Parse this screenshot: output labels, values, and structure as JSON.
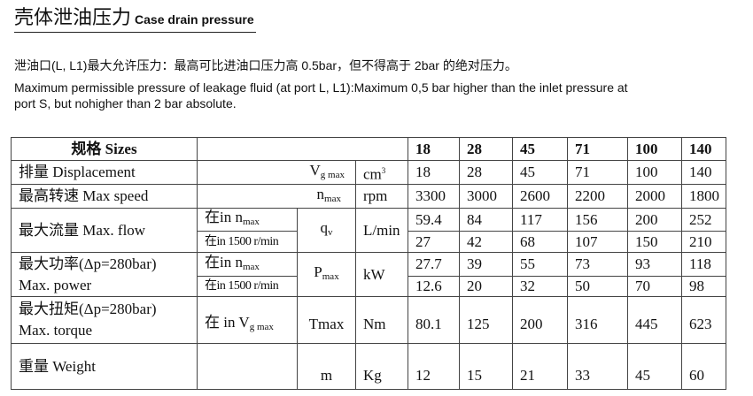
{
  "title": {
    "cn": "壳体泄油压力",
    "en": "Case drain pressure"
  },
  "para_cn": "泄油口(L, L1)最大允许压力：最高可比进油口压力高 0.5bar，但不得高于 2bar  的绝对压力。",
  "para_en1": "Maximum permissible pressure of leakage fluid (at port L, L1):Maximum 0,5 bar higher than the inlet pressure at",
  "para_en2": "port S, but nohigher than 2 bar absolute.",
  "table": {
    "header": "规格  Sizes",
    "sizes": [
      "18",
      "28",
      "45",
      "71",
      "100",
      "140"
    ],
    "rows": {
      "disp": {
        "label": "排量  Displacement",
        "sym": "V",
        "sym_sub": "g max",
        "unit": "cm",
        "unit_sup": "3",
        "values": [
          "18",
          "28",
          "45",
          "71",
          "100",
          "140"
        ]
      },
      "speed": {
        "label": "最高转速  Max speed",
        "sym": "n",
        "sym_sub": "max",
        "unit": "rpm",
        "values": [
          "3300",
          "3000",
          "2600",
          "2200",
          "2000",
          "1800"
        ]
      },
      "flow": {
        "label": "最大流量 Max. flow",
        "cond1": "在in  n",
        "cond1_sub": "max",
        "cond2": "在in 1500 r/min",
        "sym": "q",
        "sym_sub": "v",
        "unit": "L/min",
        "values1": [
          "59.4",
          "84",
          "117",
          "156",
          "200",
          "252"
        ],
        "values2": [
          "27",
          "42",
          "68",
          "107",
          "150",
          "210"
        ]
      },
      "power": {
        "label1": "最大功率(Δp=280bar)",
        "label2": "Max. power",
        "cond1": "在in n",
        "cond1_sub": "max",
        "cond2": "在in 1500 r/min",
        "sym": "P",
        "sym_sub": "max",
        "unit": "kW",
        "values1": [
          "27.7",
          "39",
          "55",
          "73",
          "93",
          "118"
        ],
        "values2": [
          "12.6",
          "20",
          "32",
          "50",
          "70",
          "98"
        ]
      },
      "torque": {
        "label1": "最大扭矩(Δp=280bar)",
        "label2": "Max. torque",
        "cond": "在 in V",
        "cond_sub": "g max",
        "sym": "Tmax",
        "unit": "Nm",
        "values": [
          "80.1",
          "125",
          "200",
          "316",
          "445",
          "623"
        ]
      },
      "weight": {
        "label": "重量 Weight",
        "sym": "m",
        "unit": "Kg",
        "values": [
          "12",
          "15",
          "21",
          "33",
          "45",
          "60"
        ]
      }
    }
  }
}
